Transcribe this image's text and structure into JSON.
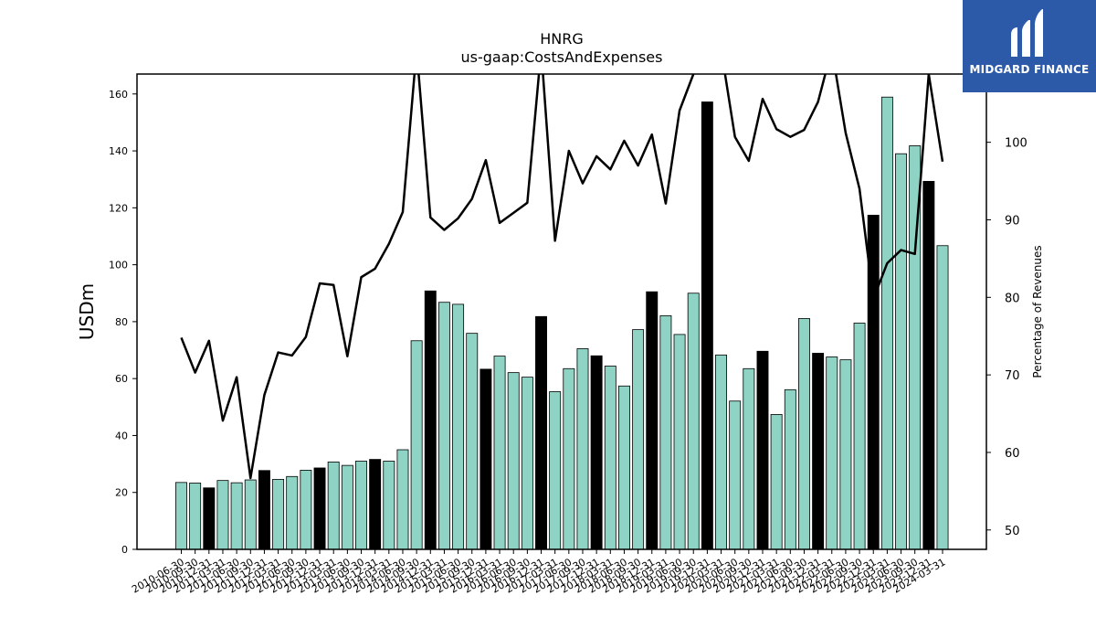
{
  "chart_data": {
    "type": "bar",
    "title": "HNRG",
    "subtitle": "us-gaap:CostsAndExpenses",
    "ylabel": "USDm",
    "y2label": "Percentage of Revenues",
    "ylim": [
      0,
      167
    ],
    "y2lim": [
      47.5,
      108.8
    ],
    "yticks": [
      0,
      20,
      40,
      60,
      80,
      100,
      120,
      140,
      160
    ],
    "y2ticks": [
      50,
      60,
      70,
      80,
      90,
      100
    ],
    "colors": {
      "bar": "#8fd3c5",
      "bar_highlight": "#000000",
      "line": "#000000",
      "bar_edge": "#000000"
    },
    "categories": [
      "2010-06-30",
      "2010-09-30",
      "2010-12-31",
      "2011-03-31",
      "2011-06-30",
      "2011-09-30",
      "2011-12-31",
      "2012-03-31",
      "2012-06-30",
      "2012-09-30",
      "2012-12-31",
      "2013-03-31",
      "2013-06-30",
      "2013-09-30",
      "2013-12-31",
      "2014-03-31",
      "2014-06-30",
      "2014-09-30",
      "2014-12-31",
      "2015-03-31",
      "2015-06-30",
      "2015-09-30",
      "2015-12-31",
      "2016-03-31",
      "2016-06-30",
      "2016-09-30",
      "2016-12-31",
      "2017-03-31",
      "2017-06-30",
      "2017-09-30",
      "2017-12-31",
      "2018-03-31",
      "2018-06-30",
      "2018-09-30",
      "2018-12-31",
      "2019-03-31",
      "2019-06-30",
      "2019-09-30",
      "2019-12-31",
      "2020-03-31",
      "2020-06-30",
      "2020-09-30",
      "2020-12-31",
      "2021-03-31",
      "2021-06-30",
      "2021-09-30",
      "2021-12-31",
      "2022-03-31",
      "2022-06-30",
      "2022-09-30",
      "2022-12-31",
      "2023-03-31",
      "2023-06-30",
      "2023-09-30",
      "2023-12-31",
      "2024-03-31"
    ],
    "series": [
      {
        "type": "bar",
        "axis": "left",
        "values": [
          23.5,
          23.3,
          21.6,
          24.2,
          23.4,
          24.4,
          27.7,
          24.6,
          25.6,
          27.8,
          28.6,
          30.7,
          29.5,
          31.0,
          31.6,
          31.0,
          35.0,
          73.3,
          90.8,
          86.8,
          86.1,
          75.9,
          63.3,
          67.9,
          62.1,
          60.5,
          81.8,
          55.4,
          63.5,
          70.5,
          68.0,
          64.4,
          57.4,
          77.2,
          90.5,
          82.1,
          75.5,
          90.0,
          157.2,
          68.3,
          52.1,
          63.5,
          69.6,
          47.4,
          56.1,
          81.1,
          68.9,
          67.6,
          66.6,
          79.5,
          117.4,
          158.9,
          139.0,
          141.8,
          129.3,
          106.7
        ],
        "highlight": [
          false,
          false,
          true,
          false,
          false,
          false,
          true,
          false,
          false,
          false,
          true,
          false,
          false,
          false,
          true,
          false,
          false,
          false,
          true,
          false,
          false,
          false,
          true,
          false,
          false,
          false,
          true,
          false,
          false,
          false,
          true,
          false,
          false,
          false,
          true,
          false,
          false,
          false,
          true,
          false,
          false,
          false,
          true,
          false,
          false,
          false,
          true,
          false,
          false,
          false,
          true,
          false,
          false,
          false,
          true,
          false
        ]
      },
      {
        "type": "line",
        "axis": "right",
        "values": [
          74.8,
          70.3,
          74.4,
          64.1,
          69.7,
          56.7,
          67.4,
          72.9,
          72.5,
          74.9,
          81.8,
          81.6,
          72.4,
          82.6,
          83.7,
          86.9,
          91.0,
          112.0,
          90.3,
          88.7,
          90.2,
          92.7,
          97.7,
          89.6,
          90.9,
          92.2,
          112.0,
          87.3,
          98.9,
          94.7,
          98.2,
          96.5,
          100.2,
          97.0,
          101.0,
          92.1,
          104.1,
          108.8,
          112.0,
          112.0,
          100.7,
          97.6,
          105.6,
          101.7,
          100.7,
          101.6,
          105.2,
          112.0,
          101.2,
          94.0,
          79.8,
          84.4,
          86.1,
          85.6,
          108.8,
          97.5
        ]
      }
    ],
    "grid": false,
    "legend": "none"
  },
  "logo": {
    "text": "MIDGARD FINANCE",
    "icon": "midgard-logo-icon"
  }
}
